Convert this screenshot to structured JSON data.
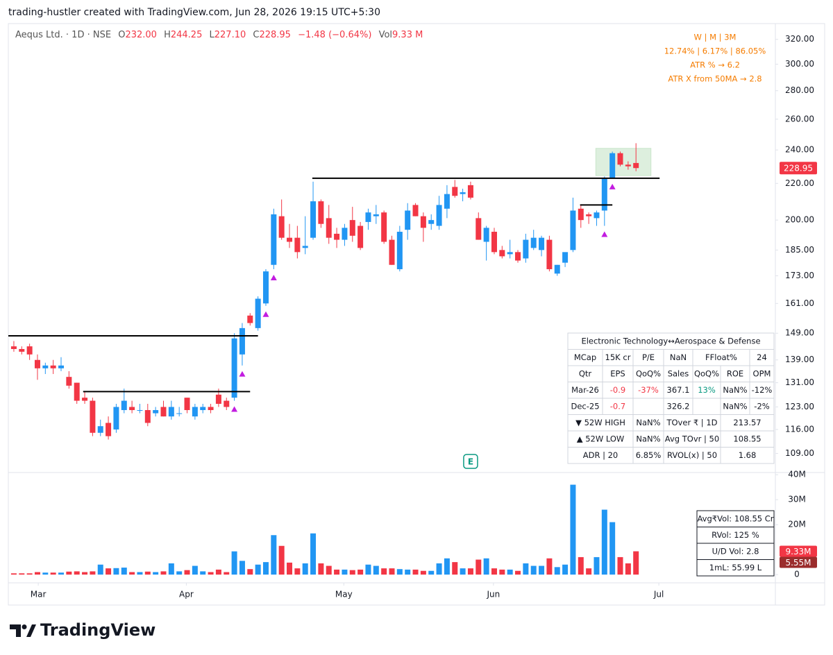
{
  "header": "trading-hustler created with TradingView.com, Jun 28, 2026 19:15 UTC+5:30",
  "legend": {
    "symbol": "Aequs Ltd. · 1D · NSE",
    "o_label": "O",
    "open": "232.00",
    "h_label": "H",
    "high": "244.25",
    "l_label": "L",
    "low": "227.10",
    "c_label": "C",
    "close": "228.95",
    "change": "−1.48 (−0.64%)",
    "vol_label": "Vol",
    "vol": "9.33 M"
  },
  "performance": [
    "W   |   M   |   3M",
    "12.74% | 6.17% | 86.05%",
    "ATR % → 6.2",
    "ATR X from 50MA → 2.8"
  ],
  "fundamentals_table": {
    "title": "Electronic Technology↔Aerospace & Defense",
    "rows": [
      [
        "MCap",
        "15K cr",
        "P/E",
        "NaN",
        "FFloat%",
        "24"
      ],
      [
        "Qtr",
        "EPS",
        "QoQ%",
        "Sales",
        "QoQ%",
        "ROE",
        "OPM"
      ],
      [
        "Mar-26",
        "-0.9",
        "-37%",
        "367.1",
        "13%",
        "NaN%",
        "-12%"
      ],
      [
        "Dec-25",
        "-0.7",
        null,
        "326.2",
        null,
        "NaN%",
        "-2%"
      ],
      [
        "▼ 52W HIGH",
        "NaN%",
        "TOver ₹ | 1D",
        "213.57"
      ],
      [
        "▲ 52W LOW",
        "NaN%",
        "Avg TOvr | 50",
        "108.55"
      ],
      [
        "ADR | 20",
        "6.85%",
        "RVOL(x) | 50",
        "1.68"
      ]
    ]
  },
  "volume_table": [
    "Avg₹Vol: 108.55 Cr",
    "RVol: 125 %",
    "U/D Vol: 2.8",
    "1mL: 55.99 L"
  ],
  "footer": "TradingView",
  "chart_data": {
    "type": "candlestick",
    "log_scale": true,
    "grid": false,
    "up_color": "#2196f3",
    "down_color": "#f23645",
    "xlim": [
      -0.7,
      96.7
    ],
    "xticks": [
      {
        "value": 3.1,
        "label": "Mar"
      },
      {
        "value": 21.9,
        "label": "Apr"
      },
      {
        "value": 41.9,
        "label": "May"
      },
      {
        "value": 60.9,
        "label": "Jun"
      },
      {
        "value": 81.9,
        "label": "Jul"
      }
    ],
    "ylim": [
      103.9,
      333.4
    ],
    "yticks": [
      {
        "value": 320,
        "label": "320.00"
      },
      {
        "value": 300,
        "label": "300.00"
      },
      {
        "value": 280,
        "label": "280.00"
      },
      {
        "value": 260,
        "label": "260.00"
      },
      {
        "value": 240,
        "label": "240.00"
      },
      {
        "value": 220,
        "label": "220.00"
      },
      {
        "value": 200,
        "label": "200.00"
      },
      {
        "value": 185,
        "label": "185.00"
      },
      {
        "value": 173,
        "label": "173.00"
      },
      {
        "value": 161,
        "label": "161.00"
      },
      {
        "value": 149,
        "label": "149.00"
      },
      {
        "value": 139,
        "label": "139.00"
      },
      {
        "value": 131,
        "label": "131.00"
      },
      {
        "value": 123,
        "label": "123.00"
      },
      {
        "value": 116,
        "label": "116.00"
      },
      {
        "value": 109,
        "label": "109.00"
      }
    ],
    "open": [
      144,
      143,
      144,
      139,
      136,
      137,
      136,
      133,
      131,
      126,
      125,
      115,
      118,
      116,
      122,
      123,
      122,
      122,
      121,
      123,
      120,
      121,
      126,
      120,
      122,
      123,
      127,
      125,
      126,
      141,
      156,
      151,
      161,
      178,
      202,
      191,
      191,
      186,
      191,
      210,
      201,
      193,
      190,
      200,
      197,
      199,
      202,
      204,
      190,
      176,
      195,
      208,
      202,
      198,
      197,
      206,
      218,
      214,
      219,
      201,
      189,
      194,
      185,
      183,
      184,
      181,
      186,
      185,
      190,
      174,
      179,
      185,
      206,
      203,
      201,
      205,
      223,
      238,
      231,
      232.0
    ],
    "high": [
      146,
      144,
      145,
      141,
      138,
      139,
      140,
      135,
      131,
      128,
      126,
      119,
      120,
      124,
      129,
      125,
      124,
      124,
      123,
      125,
      125,
      123,
      126,
      124,
      124,
      124,
      129,
      126,
      149,
      153,
      157,
      164,
      176,
      206,
      211,
      198,
      197,
      202,
      221,
      211,
      208,
      196,
      198,
      207,
      199,
      206,
      208,
      205,
      192,
      197,
      209,
      209,
      204,
      203,
      213,
      219,
      222,
      217,
      221,
      204,
      197,
      196,
      187,
      190,
      185,
      193,
      195,
      192,
      192,
      178,
      183,
      212,
      208,
      204,
      205,
      224,
      239,
      239,
      233,
      244.25
    ],
    "low": [
      142,
      141,
      139,
      132,
      134,
      134,
      135,
      129,
      124,
      124,
      114,
      114,
      113,
      115,
      121,
      121,
      121,
      117,
      120,
      120,
      119,
      120,
      121,
      119,
      121,
      121,
      123,
      122,
      125,
      137,
      152,
      150,
      160,
      176,
      190,
      186,
      181,
      183,
      190,
      196,
      188,
      186,
      187,
      189,
      185,
      195,
      198,
      188,
      178,
      175,
      190,
      202,
      189,
      195,
      195,
      201,
      212,
      210,
      211,
      190,
      180,
      183,
      181,
      181,
      179,
      179,
      185,
      182,
      175,
      173,
      177,
      184,
      196,
      198,
      197,
      197,
      223,
      230,
      228,
      227.1
    ],
    "close": [
      143,
      142,
      141,
      136,
      137,
      136,
      137,
      130,
      125,
      125,
      115,
      117,
      114,
      123,
      125,
      122,
      122,
      118,
      122,
      120,
      123,
      121,
      122,
      123,
      123,
      122,
      124,
      123,
      147,
      151,
      153,
      163,
      175,
      203,
      191,
      189,
      184,
      187,
      210,
      198,
      191,
      190,
      196,
      192,
      186,
      204,
      203,
      189,
      178,
      194,
      205,
      202,
      196,
      200,
      208,
      214,
      213,
      215,
      212,
      190,
      196,
      184,
      182,
      184,
      180,
      190,
      191,
      191,
      176,
      178,
      184,
      205,
      200,
      202,
      204,
      223,
      238,
      231,
      230,
      228.95
    ],
    "volume": [
      0.5,
      0.5,
      0.5,
      1.0,
      0.8,
      0.8,
      0.8,
      1.2,
      1.3,
      1.0,
      1.3,
      4.0,
      2.5,
      2.6,
      2.8,
      1.0,
      1.0,
      1.2,
      1.0,
      1.3,
      4.5,
      1.3,
      1.8,
      3.5,
      1.3,
      1.0,
      2.0,
      1.0,
      9.3,
      5.5,
      2.2,
      4.0,
      5.0,
      15.8,
      11.5,
      4.8,
      2.5,
      4.5,
      16.5,
      4.5,
      3.5,
      2.0,
      2.0,
      1.8,
      2.0,
      4.0,
      3.5,
      2.5,
      2.5,
      2.2,
      2.0,
      2.0,
      1.5,
      1.5,
      4.5,
      6.5,
      5.0,
      2.5,
      2.5,
      6.0,
      6.5,
      2.5,
      2.0,
      2.0,
      1.5,
      4.5,
      3.5,
      3.5,
      6.5,
      3.0,
      4.0,
      36.0,
      7.0,
      2.5,
      7.0,
      26.0,
      21.0,
      7.0,
      4.5,
      9.33
    ],
    "volume_ylim": [
      -3.3,
      40.6
    ],
    "volume_ticks": [
      {
        "value": 40,
        "label": "40M"
      },
      {
        "value": 30,
        "label": "30M"
      },
      {
        "value": 20,
        "label": "20M"
      },
      0
    ],
    "last_price_label": "228.95",
    "last_volume_label": "9.33M",
    "avg_volume": 5.55,
    "avg_volume_label": "5.55M",
    "levels": [
      {
        "value": 148,
        "from": -0.7,
        "to": 31
      },
      {
        "value": 128,
        "from": 8.8,
        "to": 30
      },
      {
        "value": 223,
        "from": 37.9,
        "to": 82
      },
      {
        "value": 208,
        "from": 71.9,
        "to": 76
      }
    ],
    "highlight": {
      "x": [
        73.9,
        80.9
      ],
      "y": [
        224.5,
        241
      ]
    },
    "signals": [
      28,
      29,
      32,
      33,
      75,
      76
    ],
    "earnings": {
      "label": "E",
      "index": 58
    }
  }
}
